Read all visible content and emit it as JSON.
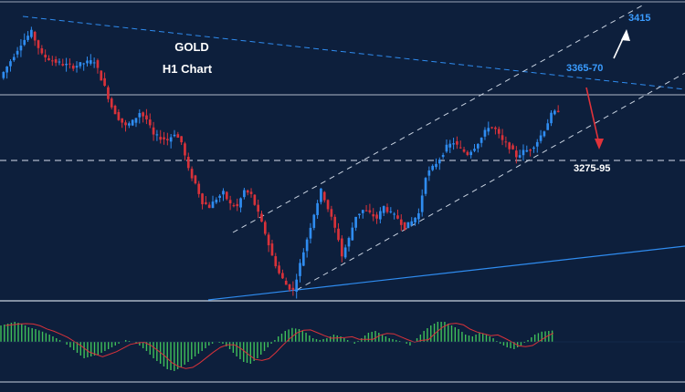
{
  "chart_data": {
    "type": "candlestick",
    "title": "GOLD",
    "subtitle": "H1 Chart",
    "colors": {
      "background": "#0d1f3c",
      "bull": "#2f8cf0",
      "bear": "#d8323a",
      "support_line": "#2f8cf0",
      "channel": "#c8d2e0",
      "level_line": "#aeb8c8",
      "histogram": "#3fbf5a",
      "signal": "#d8323a",
      "label_blue": "#3a9cff",
      "label_white": "#ffffff",
      "arrow_down": "#e0323a",
      "arrow_up": "#ffffff"
    },
    "price_range": [
      3190,
      3440
    ],
    "close_path": [
      [
        0,
        3380
      ],
      [
        3,
        3395
      ],
      [
        6,
        3410
      ],
      [
        9,
        3420
      ],
      [
        12,
        3400
      ],
      [
        15,
        3395
      ],
      [
        18,
        3392
      ],
      [
        21,
        3390
      ],
      [
        24,
        3393
      ],
      [
        27,
        3395
      ],
      [
        30,
        3372
      ],
      [
        32,
        3355
      ],
      [
        34,
        3345
      ],
      [
        36,
        3338
      ],
      [
        38,
        3342
      ],
      [
        40,
        3350
      ],
      [
        42,
        3344
      ],
      [
        44,
        3330
      ],
      [
        46,
        3328
      ],
      [
        48,
        3326
      ],
      [
        50,
        3332
      ],
      [
        52,
        3324
      ],
      [
        54,
        3300
      ],
      [
        56,
        3288
      ],
      [
        58,
        3272
      ],
      [
        60,
        3268
      ],
      [
        62,
        3275
      ],
      [
        64,
        3280
      ],
      [
        66,
        3270
      ],
      [
        68,
        3268
      ],
      [
        70,
        3282
      ],
      [
        72,
        3278
      ],
      [
        74,
        3262
      ],
      [
        76,
        3245
      ],
      [
        78,
        3225
      ],
      [
        80,
        3210
      ],
      [
        82,
        3200
      ],
      [
        84,
        3195
      ],
      [
        86,
        3218
      ],
      [
        88,
        3240
      ],
      [
        90,
        3262
      ],
      [
        92,
        3282
      ],
      [
        93,
        3275
      ],
      [
        95,
        3258
      ],
      [
        97,
        3240
      ],
      [
        98,
        3225
      ],
      [
        100,
        3240
      ],
      [
        102,
        3260
      ],
      [
        104,
        3265
      ],
      [
        106,
        3262
      ],
      [
        108,
        3258
      ],
      [
        110,
        3268
      ],
      [
        112,
        3262
      ],
      [
        114,
        3258
      ],
      [
        116,
        3250
      ],
      [
        118,
        3255
      ],
      [
        120,
        3262
      ],
      [
        122,
        3295
      ],
      [
        124,
        3302
      ],
      [
        126,
        3310
      ],
      [
        128,
        3320
      ],
      [
        130,
        3324
      ],
      [
        132,
        3318
      ],
      [
        134,
        3314
      ],
      [
        136,
        3320
      ],
      [
        138,
        3328
      ],
      [
        140,
        3338
      ],
      [
        142,
        3335
      ],
      [
        144,
        3325
      ],
      [
        146,
        3320
      ],
      [
        148,
        3312
      ],
      [
        150,
        3316
      ],
      [
        152,
        3318
      ],
      [
        154,
        3325
      ],
      [
        156,
        3335
      ],
      [
        158,
        3348
      ],
      [
        160,
        3352
      ]
    ],
    "levels": [
      {
        "label": "3415",
        "color": "label_blue"
      },
      {
        "label": "3365-70",
        "color": "label_blue"
      },
      {
        "label": "3275-95",
        "color": "label_white"
      }
    ],
    "indicator": {
      "type": "histogram",
      "values": [
        0.45,
        0.5,
        0.55,
        0.5,
        0.4,
        0.35,
        0.28,
        0.2,
        0.1,
        0.0,
        -0.15,
        -0.3,
        -0.45,
        -0.4,
        -0.35,
        -0.25,
        -0.15,
        -0.05,
        0.05,
        0.0,
        -0.1,
        -0.25,
        -0.45,
        -0.6,
        -0.75,
        -0.8,
        -0.7,
        -0.55,
        -0.4,
        -0.25,
        -0.1,
        0.0,
        -0.05,
        -0.2,
        -0.4,
        -0.55,
        -0.6,
        -0.45,
        -0.25,
        -0.05,
        0.15,
        0.3,
        0.38,
        0.35,
        0.25,
        0.1,
        0.05,
        0.1,
        0.2,
        0.15,
        0.05,
        -0.05,
        0.1,
        0.25,
        0.3,
        0.2,
        0.1,
        0.05,
        0.0,
        -0.1,
        0.1,
        0.3,
        0.45,
        0.55,
        0.55,
        0.45,
        0.35,
        0.2,
        0.15,
        0.25,
        0.2,
        0.1,
        -0.05,
        -0.15,
        -0.2,
        -0.1,
        0.05,
        0.2,
        0.28,
        0.3,
        0.32
      ],
      "range": [
        -1,
        1
      ]
    }
  }
}
